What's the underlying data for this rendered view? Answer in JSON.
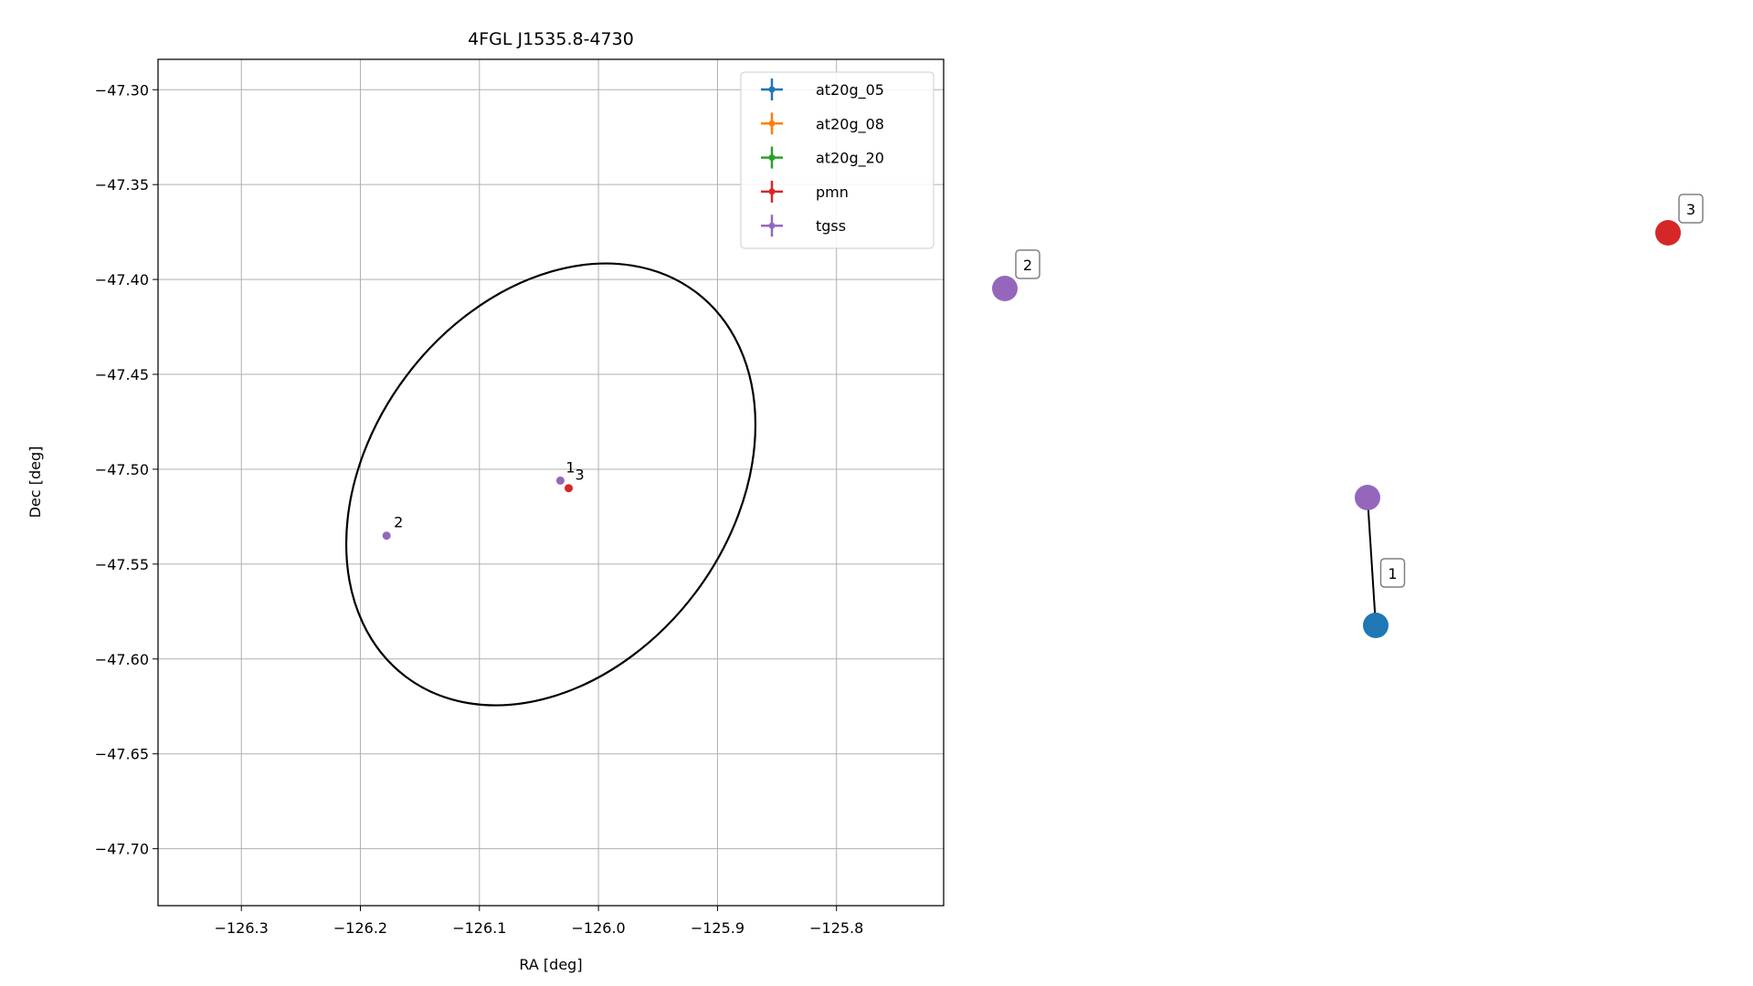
{
  "chart_data": [
    {
      "type": "scatter",
      "title": "4FGL J1535.8-4730",
      "xlabel": "RA [deg]",
      "ylabel": "Dec [deg]",
      "xlim": [
        -126.37,
        -125.71
      ],
      "ylim": [
        -47.73,
        -47.284
      ],
      "x_ticks": [
        -126.3,
        -126.2,
        -126.1,
        -126.0,
        -125.9,
        -125.8
      ],
      "x_tick_labels": [
        "−126.3",
        "−126.2",
        "−126.1",
        "−126.0",
        "−125.9",
        "−125.8"
      ],
      "y_ticks": [
        -47.3,
        -47.35,
        -47.4,
        -47.45,
        -47.5,
        -47.55,
        -47.6,
        -47.65,
        -47.7
      ],
      "y_tick_labels": [
        "−47.30",
        "−47.35",
        "−47.40",
        "−47.45",
        "−47.50",
        "−47.55",
        "−47.60",
        "−47.65",
        "−47.70"
      ],
      "grid": true,
      "legend_position": "top-right",
      "series": [
        {
          "name": "at20g_05",
          "color": "#1f77b4",
          "points": []
        },
        {
          "name": "at20g_08",
          "color": "#ff7f0e",
          "points": []
        },
        {
          "name": "at20g_20",
          "color": "#2ca02c",
          "points": []
        },
        {
          "name": "pmn",
          "color": "#d62728",
          "points": [
            {
              "x": -126.025,
              "y": -47.51,
              "label": "3"
            }
          ]
        },
        {
          "name": "tgss",
          "color": "#9467bd",
          "points": [
            {
              "x": -126.032,
              "y": -47.506,
              "label": "1"
            },
            {
              "x": -126.178,
              "y": -47.535,
              "label": "2"
            }
          ]
        }
      ],
      "ellipse": {
        "center": {
          "x": -126.04,
          "y": -47.508
        },
        "semi_major": 0.156,
        "semi_minor": 0.117,
        "angle_deg": -37,
        "color": "#000000"
      }
    },
    {
      "type": "diagram",
      "nodes": [
        {
          "id": "tgss_2",
          "color": "#9467bd",
          "label": "2"
        },
        {
          "id": "pmn_3",
          "color": "#d62728",
          "label": "3"
        },
        {
          "id": "tgss_1",
          "color": "#9467bd",
          "label": ""
        },
        {
          "id": "at20g_1",
          "color": "#1f77b4",
          "label": ""
        }
      ],
      "edges": [
        {
          "from": "tgss_1",
          "to": "at20g_1",
          "label": "1"
        }
      ]
    }
  ]
}
